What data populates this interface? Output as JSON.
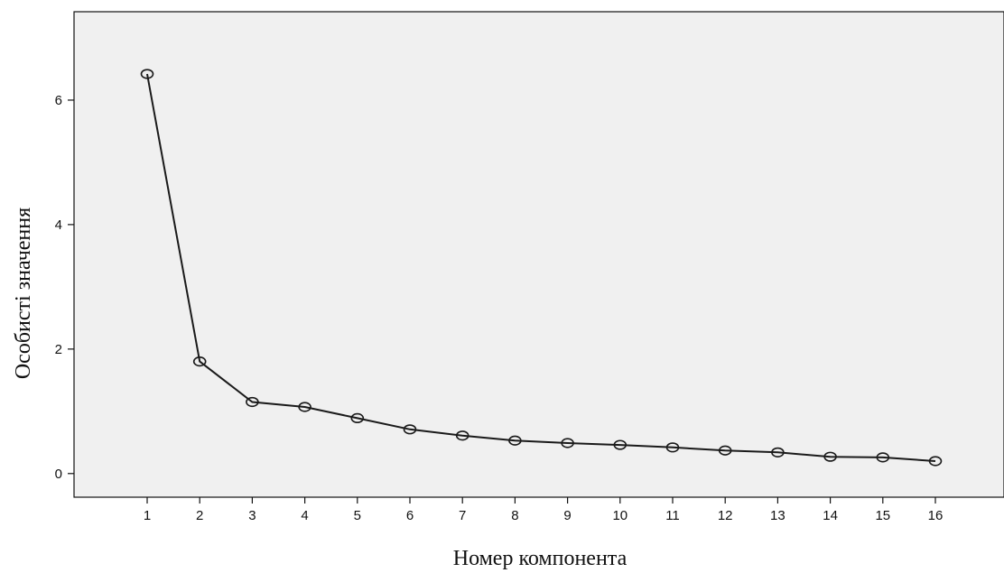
{
  "chart_data": {
    "type": "line",
    "xlabel": "Номер компонента",
    "ylabel": "Особисті значення",
    "x": [
      1,
      2,
      3,
      4,
      5,
      6,
      7,
      8,
      9,
      10,
      11,
      12,
      13,
      14,
      15,
      16
    ],
    "x_ticks": [
      "1",
      "2",
      "3",
      "4",
      "5",
      "6",
      "7",
      "8",
      "9",
      "10",
      "11",
      "12",
      "13",
      "14",
      "15",
      "16"
    ],
    "series": [
      {
        "values": [
          6.42,
          1.8,
          1.15,
          1.07,
          0.89,
          0.71,
          0.61,
          0.53,
          0.49,
          0.46,
          0.42,
          0.37,
          0.34,
          0.27,
          0.26,
          0.2
        ]
      }
    ],
    "y_ticks": [
      "0",
      "2",
      "4",
      "6"
    ],
    "ylim": [
      -0.38,
      7.42
    ],
    "grid": false,
    "marker": "circle-open",
    "colors": {
      "plot_background": "#f0f0f0",
      "line": "#1a1a1a",
      "axis": "#111111"
    }
  }
}
